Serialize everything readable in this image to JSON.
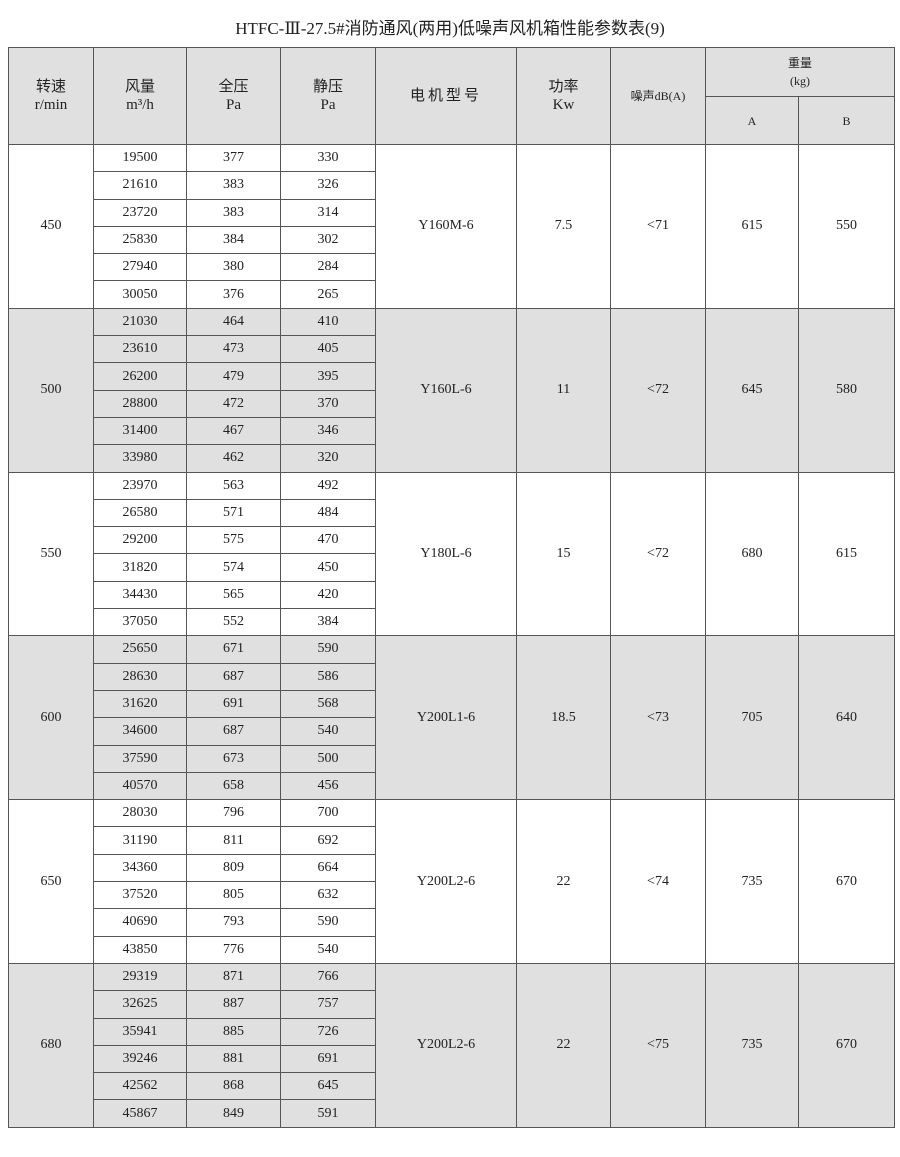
{
  "title": "HTFC-Ⅲ-27.5#消防通风(两用)低噪声风机箱性能参数表(9)",
  "headers": {
    "speed": "转速",
    "speed_unit": "r/min",
    "airflow": "风量",
    "airflow_unit": "m³/h",
    "total_pressure": "全压",
    "total_pressure_unit": "Pa",
    "static_pressure": "静压",
    "static_pressure_unit": "Pa",
    "motor": "电机型号",
    "power": "功率",
    "power_unit": "Kw",
    "noise": "噪声dB(A)",
    "weight": "重量",
    "weight_unit": "(kg)",
    "weight_a": "A",
    "weight_b": "B"
  },
  "colors": {
    "shaded_group": "#e0e0e0",
    "border": "#555555"
  },
  "groups": [
    {
      "speed": "450",
      "motor": "Y160M-6",
      "power": "7.5",
      "noise": "<71",
      "weight_a": "615",
      "weight_b": "550",
      "rows": [
        [
          "19500",
          "377",
          "330"
        ],
        [
          "21610",
          "383",
          "326"
        ],
        [
          "23720",
          "383",
          "314"
        ],
        [
          "25830",
          "384",
          "302"
        ],
        [
          "27940",
          "380",
          "284"
        ],
        [
          "30050",
          "376",
          "265"
        ]
      ]
    },
    {
      "speed": "500",
      "motor": "Y160L-6",
      "power": "11",
      "noise": "<72",
      "weight_a": "645",
      "weight_b": "580",
      "rows": [
        [
          "21030",
          "464",
          "410"
        ],
        [
          "23610",
          "473",
          "405"
        ],
        [
          "26200",
          "479",
          "395"
        ],
        [
          "28800",
          "472",
          "370"
        ],
        [
          "31400",
          "467",
          "346"
        ],
        [
          "33980",
          "462",
          "320"
        ]
      ]
    },
    {
      "speed": "550",
      "motor": "Y180L-6",
      "power": "15",
      "noise": "<72",
      "weight_a": "680",
      "weight_b": "615",
      "rows": [
        [
          "23970",
          "563",
          "492"
        ],
        [
          "26580",
          "571",
          "484"
        ],
        [
          "29200",
          "575",
          "470"
        ],
        [
          "31820",
          "574",
          "450"
        ],
        [
          "34430",
          "565",
          "420"
        ],
        [
          "37050",
          "552",
          "384"
        ]
      ]
    },
    {
      "speed": "600",
      "motor": "Y200L1-6",
      "power": "18.5",
      "noise": "<73",
      "weight_a": "705",
      "weight_b": "640",
      "rows": [
        [
          "25650",
          "671",
          "590"
        ],
        [
          "28630",
          "687",
          "586"
        ],
        [
          "31620",
          "691",
          "568"
        ],
        [
          "34600",
          "687",
          "540"
        ],
        [
          "37590",
          "673",
          "500"
        ],
        [
          "40570",
          "658",
          "456"
        ]
      ]
    },
    {
      "speed": "650",
      "motor": "Y200L2-6",
      "power": "22",
      "noise": "<74",
      "weight_a": "735",
      "weight_b": "670",
      "rows": [
        [
          "28030",
          "796",
          "700"
        ],
        [
          "31190",
          "811",
          "692"
        ],
        [
          "34360",
          "809",
          "664"
        ],
        [
          "37520",
          "805",
          "632"
        ],
        [
          "40690",
          "793",
          "590"
        ],
        [
          "43850",
          "776",
          "540"
        ]
      ]
    },
    {
      "speed": "680",
      "motor": "Y200L2-6",
      "power": "22",
      "noise": "<75",
      "weight_a": "735",
      "weight_b": "670",
      "rows": [
        [
          "29319",
          "871",
          "766"
        ],
        [
          "32625",
          "887",
          "757"
        ],
        [
          "35941",
          "885",
          "726"
        ],
        [
          "39246",
          "881",
          "691"
        ],
        [
          "42562",
          "868",
          "645"
        ],
        [
          "45867",
          "849",
          "591"
        ]
      ]
    }
  ]
}
